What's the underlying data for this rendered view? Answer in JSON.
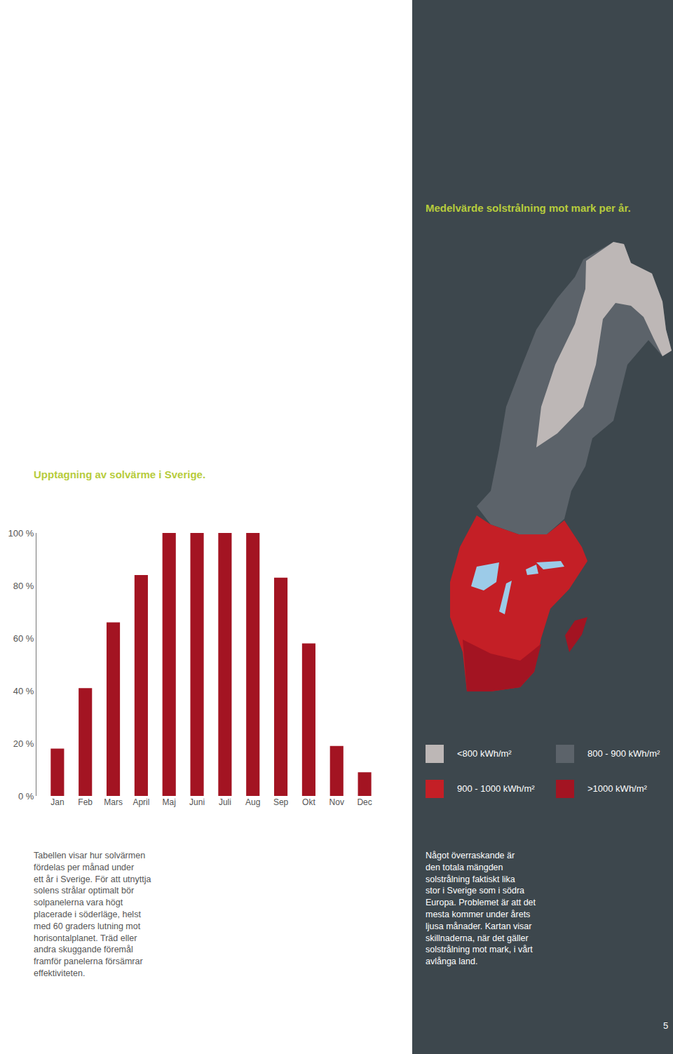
{
  "chart_data": {
    "type": "bar",
    "title": "Upptagning av solvärme i Sverige.",
    "categories": [
      "Jan",
      "Feb",
      "Mars",
      "April",
      "Maj",
      "Juni",
      "Juli",
      "Aug",
      "Sep",
      "Okt",
      "Nov",
      "Dec"
    ],
    "values": [
      18,
      41,
      66,
      84,
      100,
      100,
      100,
      100,
      83,
      58,
      19,
      9
    ],
    "color": "#a31422",
    "ylim": [
      0,
      100
    ],
    "yticks": [
      {
        "value": 0,
        "label": "0 %"
      },
      {
        "value": 20,
        "label": "20 %"
      },
      {
        "value": 40,
        "label": "40 %"
      },
      {
        "value": 60,
        "label": "60 %"
      },
      {
        "value": 80,
        "label": "80 %"
      },
      {
        "value": 100,
        "label": "100 %"
      }
    ],
    "grid": false
  },
  "caption": [
    "Tabellen visar hur solvärmen",
    "fördelas per månad under",
    "ett år i Sverige. För att utnyttja",
    "solens strålar optimalt bör",
    "solpanelerna vara högt",
    "placerade i söderläge, helst",
    "med 60 graders lutning mot",
    "horisontalplanet. Träd eller",
    "andra skuggande föremål",
    "framför panelerna försämrar",
    "effektiviteten."
  ],
  "map": {
    "title": "Medelvärde solstrålning mot mark per år.",
    "legend": [
      {
        "label": "<800 kWh/m²",
        "color": "#bdb7b6"
      },
      {
        "label": "800 - 900 kWh/m²",
        "color": "#5c636a"
      },
      {
        "label": "900 - 1000 kWh/m²",
        "color": "#c41f26"
      },
      {
        "label": ">1000 kWh/m²",
        "color": "#a31422"
      }
    ],
    "text": [
      "Något överraskande är",
      "den totala mängden",
      "solstrålning faktiskt lika",
      "stor i Sverige som i södra",
      "Europa. Problemet är att det",
      "mesta kommer under årets",
      "ljusa månader. Kartan visar",
      "skillnaderna, när det gäller",
      "solstrålning mot mark, i vårt",
      "avlånga land."
    ]
  },
  "page_number": "5"
}
